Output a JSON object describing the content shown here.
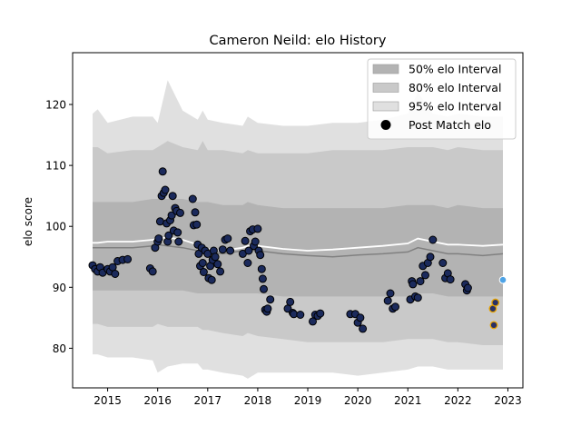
{
  "chart_data": {
    "type": "scatter",
    "title": "Cameron Neild: elo History",
    "xlabel": "",
    "ylabel": "elo score",
    "xlim": [
      2014.3,
      2023.3
    ],
    "ylim": [
      73.5,
      128.5
    ],
    "x_ticks": [
      2015,
      2016,
      2017,
      2018,
      2019,
      2020,
      2021,
      2022,
      2023
    ],
    "x_tick_labels": [
      "2015",
      "2016",
      "2017",
      "2018",
      "2019",
      "2020",
      "2021",
      "2022",
      "2023"
    ],
    "y_ticks": [
      80,
      90,
      100,
      110,
      120
    ],
    "y_tick_labels": [
      "80",
      "90",
      "100",
      "110",
      "120"
    ],
    "grid": false,
    "legend_position": "top-right",
    "legend": [
      {
        "label": "50% elo Interval",
        "kind": "band",
        "color": "#b3b3b3"
      },
      {
        "label": "80% elo Interval",
        "kind": "band",
        "color": "#c9c9c9"
      },
      {
        "label": "95% elo Interval",
        "kind": "band",
        "color": "#e0e0e0"
      },
      {
        "label": "Post Match elo",
        "kind": "marker",
        "color": "#000000"
      }
    ],
    "colors": {
      "band50": "#b3b3b3",
      "band80": "#c9c9c9",
      "band95": "#e0e0e0",
      "median_line": "#808080",
      "mean_line": "#ffffff",
      "point_fill": "#1b2a5c",
      "point_edge": "#000000",
      "recent_fill": "#2a3166",
      "recent_edge": "#e8a400",
      "forecast_fill": "#4ea3e6",
      "forecast_edge": "#ffffff"
    },
    "bands": {
      "x": [
        2014.7,
        2014.8,
        2015.0,
        2015.5,
        2015.9,
        2016.0,
        2016.2,
        2016.5,
        2016.8,
        2016.9,
        2017.0,
        2017.3,
        2017.7,
        2017.8,
        2018.0,
        2018.5,
        2019.0,
        2019.5,
        2020.0,
        2020.5,
        2021.0,
        2021.2,
        2021.5,
        2021.8,
        2022.0,
        2022.5,
        2022.9
      ],
      "p95_hi": [
        118.5,
        119.2,
        117.0,
        118.0,
        118.0,
        117.0,
        124.0,
        119.0,
        117.5,
        119.0,
        117.5,
        117.0,
        116.5,
        118.0,
        117.0,
        116.5,
        116.5,
        117.0,
        117.0,
        117.5,
        118.5,
        122.0,
        118.5,
        118.0,
        118.5,
        118.0,
        118.0
      ],
      "p80_hi": [
        113.0,
        113.0,
        112.0,
        112.5,
        112.5,
        113.0,
        114.0,
        113.0,
        112.5,
        114.0,
        112.5,
        112.5,
        112.0,
        112.5,
        112.0,
        112.0,
        112.0,
        112.5,
        112.5,
        112.5,
        113.0,
        113.0,
        113.0,
        112.5,
        113.0,
        112.5,
        112.5
      ],
      "p50_hi": [
        104.0,
        104.0,
        104.0,
        104.0,
        104.5,
        104.5,
        104.5,
        104.5,
        104.0,
        104.0,
        104.0,
        103.5,
        103.5,
        104.0,
        103.5,
        103.0,
        103.0,
        103.0,
        103.0,
        103.0,
        103.5,
        103.5,
        103.5,
        103.0,
        103.5,
        103.0,
        103.0
      ],
      "p50_lo": [
        89.5,
        89.5,
        89.5,
        89.5,
        89.5,
        89.5,
        89.5,
        89.5,
        89.0,
        89.0,
        89.0,
        89.0,
        89.0,
        89.0,
        89.0,
        88.5,
        88.5,
        88.5,
        88.5,
        88.5,
        88.5,
        89.0,
        89.0,
        88.5,
        88.5,
        88.5,
        88.5
      ],
      "p80_lo": [
        84.0,
        84.0,
        83.5,
        83.5,
        83.5,
        84.0,
        83.5,
        83.5,
        83.5,
        83.0,
        83.0,
        82.5,
        82.0,
        82.5,
        82.0,
        81.5,
        81.0,
        81.0,
        81.0,
        81.0,
        81.5,
        81.5,
        81.5,
        81.0,
        81.0,
        80.5,
        80.5
      ],
      "p95_lo": [
        79.0,
        79.0,
        78.5,
        78.5,
        78.0,
        76.0,
        77.0,
        77.5,
        77.5,
        76.5,
        76.5,
        76.0,
        75.5,
        75.0,
        76.0,
        76.0,
        76.0,
        76.0,
        75.5,
        76.0,
        76.5,
        77.0,
        77.0,
        76.5,
        76.5,
        76.5,
        76.5
      ],
      "median": [
        96.5,
        96.5,
        96.5,
        96.5,
        96.8,
        97.0,
        96.8,
        96.5,
        96.0,
        96.0,
        95.8,
        95.5,
        96.0,
        96.2,
        96.0,
        95.5,
        95.2,
        95.0,
        95.3,
        95.5,
        95.8,
        96.5,
        96.0,
        95.5,
        95.5,
        95.2,
        95.5
      ],
      "mean": [
        97.3,
        97.3,
        97.5,
        97.5,
        97.8,
        98.0,
        98.2,
        97.8,
        97.0,
        96.5,
        96.3,
        96.0,
        96.5,
        96.8,
        96.8,
        96.3,
        96.0,
        96.2,
        96.5,
        96.8,
        97.2,
        98.0,
        97.5,
        97.0,
        97.0,
        96.8,
        97.0
      ]
    },
    "series": [
      {
        "name": "Post Match elo",
        "points": [
          [
            2014.7,
            93.6
          ],
          [
            2014.75,
            93.0
          ],
          [
            2014.8,
            92.6
          ],
          [
            2014.85,
            93.3
          ],
          [
            2014.9,
            92.4
          ],
          [
            2015.0,
            93.0
          ],
          [
            2015.05,
            92.6
          ],
          [
            2015.1,
            93.3
          ],
          [
            2015.15,
            92.2
          ],
          [
            2015.2,
            94.3
          ],
          [
            2015.3,
            94.5
          ],
          [
            2015.4,
            94.6
          ],
          [
            2015.85,
            93.1
          ],
          [
            2015.9,
            92.6
          ],
          [
            2015.95,
            96.5
          ],
          [
            2016.0,
            97.5
          ],
          [
            2016.02,
            98.0
          ],
          [
            2016.05,
            100.8
          ],
          [
            2016.08,
            105.0
          ],
          [
            2016.1,
            109.0
          ],
          [
            2016.12,
            105.5
          ],
          [
            2016.15,
            106.0
          ],
          [
            2016.18,
            100.5
          ],
          [
            2016.2,
            97.5
          ],
          [
            2016.22,
            98.5
          ],
          [
            2016.25,
            101.0
          ],
          [
            2016.28,
            101.8
          ],
          [
            2016.3,
            105.0
          ],
          [
            2016.32,
            99.3
          ],
          [
            2016.35,
            103.0
          ],
          [
            2016.38,
            102.5
          ],
          [
            2016.4,
            99.0
          ],
          [
            2016.42,
            97.5
          ],
          [
            2016.45,
            102.2
          ],
          [
            2016.7,
            104.5
          ],
          [
            2016.72,
            100.2
          ],
          [
            2016.75,
            102.3
          ],
          [
            2016.78,
            100.3
          ],
          [
            2016.8,
            97.0
          ],
          [
            2016.82,
            95.5
          ],
          [
            2016.85,
            93.5
          ],
          [
            2016.88,
            96.5
          ],
          [
            2016.9,
            94.0
          ],
          [
            2016.92,
            92.5
          ],
          [
            2016.95,
            96.0
          ],
          [
            2017.0,
            95.5
          ],
          [
            2017.02,
            91.5
          ],
          [
            2017.05,
            93.5
          ],
          [
            2017.08,
            91.2
          ],
          [
            2017.1,
            94.5
          ],
          [
            2017.12,
            96.0
          ],
          [
            2017.15,
            95.0
          ],
          [
            2017.2,
            93.8
          ],
          [
            2017.25,
            92.6
          ],
          [
            2017.3,
            96.2
          ],
          [
            2017.35,
            97.8
          ],
          [
            2017.4,
            98.0
          ],
          [
            2017.45,
            96.0
          ],
          [
            2017.7,
            95.5
          ],
          [
            2017.75,
            97.6
          ],
          [
            2017.8,
            94.0
          ],
          [
            2017.82,
            96.0
          ],
          [
            2017.85,
            99.2
          ],
          [
            2017.9,
            99.5
          ],
          [
            2017.92,
            96.8
          ],
          [
            2017.95,
            97.5
          ],
          [
            2018.0,
            99.6
          ],
          [
            2018.02,
            96.0
          ],
          [
            2018.05,
            95.3
          ],
          [
            2018.08,
            93.0
          ],
          [
            2018.1,
            91.4
          ],
          [
            2018.12,
            89.7
          ],
          [
            2018.15,
            86.3
          ],
          [
            2018.18,
            86.0
          ],
          [
            2018.2,
            86.5
          ],
          [
            2018.25,
            88.0
          ],
          [
            2018.6,
            86.5
          ],
          [
            2018.65,
            87.6
          ],
          [
            2018.7,
            85.8
          ],
          [
            2018.72,
            85.6
          ],
          [
            2018.85,
            85.5
          ],
          [
            2019.1,
            84.4
          ],
          [
            2019.15,
            85.5
          ],
          [
            2019.2,
            85.3
          ],
          [
            2019.25,
            85.7
          ],
          [
            2019.85,
            85.6
          ],
          [
            2019.95,
            85.6
          ],
          [
            2020.0,
            84.2
          ],
          [
            2020.05,
            85.0
          ],
          [
            2020.1,
            83.2
          ],
          [
            2020.6,
            87.8
          ],
          [
            2020.65,
            89.0
          ],
          [
            2020.7,
            86.5
          ],
          [
            2020.75,
            86.8
          ],
          [
            2021.05,
            88.0
          ],
          [
            2021.08,
            91.0
          ],
          [
            2021.1,
            90.5
          ],
          [
            2021.15,
            88.5
          ],
          [
            2021.2,
            88.3
          ],
          [
            2021.25,
            91.0
          ],
          [
            2021.3,
            93.5
          ],
          [
            2021.35,
            92.0
          ],
          [
            2021.4,
            94.0
          ],
          [
            2021.45,
            95.0
          ],
          [
            2021.5,
            97.8
          ],
          [
            2021.7,
            94.0
          ],
          [
            2021.75,
            91.5
          ],
          [
            2021.8,
            92.3
          ],
          [
            2021.85,
            91.3
          ],
          [
            2022.15,
            90.5
          ],
          [
            2022.18,
            89.5
          ],
          [
            2022.2,
            89.9
          ]
        ]
      },
      {
        "name": "recent",
        "points": [
          [
            2022.7,
            86.5
          ],
          [
            2022.72,
            83.8
          ],
          [
            2022.75,
            87.5
          ]
        ]
      },
      {
        "name": "forecast",
        "points": [
          [
            2022.9,
            91.2
          ]
        ]
      }
    ]
  }
}
